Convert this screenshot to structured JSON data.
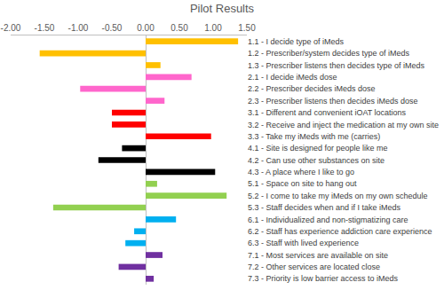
{
  "chart_data": {
    "type": "bar",
    "title": "Pilot Results",
    "orientation": "horizontal",
    "categories": [
      "1.1 - I decide type of iMeds",
      "1.2 - Prescriber/system decides type of iMeds",
      "1.3 - Prescriber listens then decides type of iMeds",
      "2.1 - I decide iMeds dose",
      "2.2 - Prescriber decides iMeds dose",
      "2.3 - Prescriber listens then decides iMeds dose",
      "3.1 - Different and convenient iOAT locations",
      "3.2 - Receive and inject the medication at my own site",
      "3.3 - Take my iMeds with me (carries)",
      "4.1 - Site is designed for people like me",
      "4.2 - Can use other substances on site",
      "4.3 - A place where I like to go",
      "5.1 - Space on site to hang out",
      "5.2 - I come to take my iMeds on my own schedule",
      "5.3 - Staff decides when and if I take iMeds",
      "6.1 - Individualized and non-stigmatizing care",
      "6.2 - Staff has experience addiction care experience",
      "6.3 - Staff with lived experience",
      "7.1 - Most services are available on site",
      "7.2 - Other services are located close",
      "7.3 - Priority is low barrier access to iMeds"
    ],
    "values": [
      1.37,
      -1.57,
      0.22,
      0.68,
      -0.97,
      0.28,
      -0.5,
      -0.5,
      0.97,
      -0.35,
      -0.7,
      1.03,
      0.17,
      1.2,
      -1.37,
      0.45,
      -0.17,
      -0.3,
      0.25,
      -0.4,
      0.12
    ],
    "colors": [
      "#ffc000",
      "#ffc000",
      "#ffc000",
      "#ff66cc",
      "#ff66cc",
      "#ff66cc",
      "#ff0000",
      "#ff0000",
      "#ff0000",
      "#000000",
      "#000000",
      "#000000",
      "#92d050",
      "#92d050",
      "#92d050",
      "#00b0f0",
      "#00b0f0",
      "#00b0f0",
      "#7030a0",
      "#7030a0",
      "#7030a0"
    ],
    "xlim": [
      -2,
      1.5
    ],
    "xticks": [
      {
        "value": -2,
        "label": "-2.00"
      },
      {
        "value": -1.5,
        "label": "-1.50"
      },
      {
        "value": -1,
        "label": "-1.00"
      },
      {
        "value": -0.5,
        "label": "-0.50"
      },
      {
        "value": 0,
        "label": "0.00"
      },
      {
        "value": 0.5,
        "label": "0.50"
      },
      {
        "value": 1,
        "label": "1.00"
      },
      {
        "value": 1.5,
        "label": "1.50"
      }
    ],
    "grid": false
  }
}
